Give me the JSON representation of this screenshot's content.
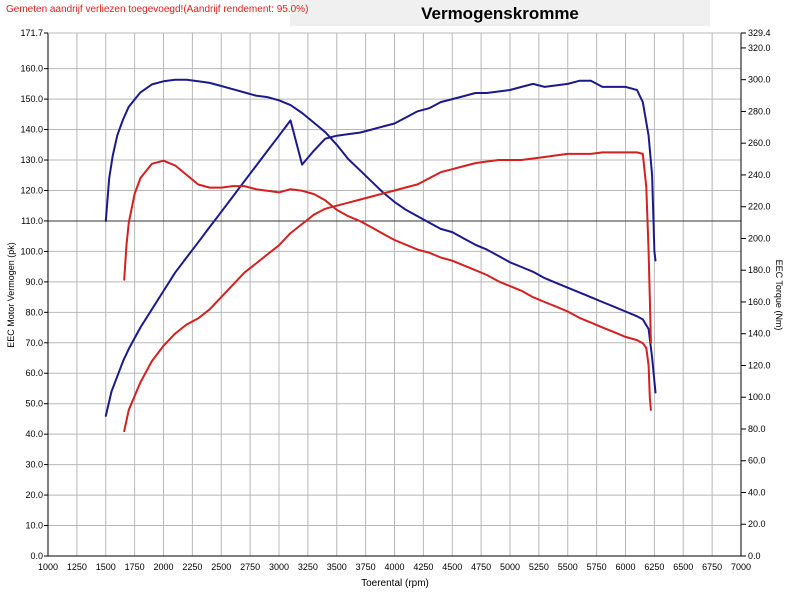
{
  "header": {
    "warning": "Gemeten aandrijf verliezen toegevoegd!(Aandrijf rendement: 95.0%)",
    "title": "Vermogenskromme"
  },
  "chart_data": {
    "type": "line",
    "title": "Vermogenskromme",
    "xlabel": "Toerental (rpm)",
    "ylabel_left": "EEC Motor Vermogen (pk)",
    "ylabel_right": "EEC Torque (Nm)",
    "xlim": [
      1000,
      7000
    ],
    "ylim_left": [
      0,
      171.7
    ],
    "ylim_right": [
      0,
      329.4
    ],
    "x_ticks": [
      "1000",
      "1250",
      "1500",
      "1750",
      "2000",
      "2250",
      "2500",
      "2750",
      "3000",
      "3250",
      "3500",
      "3750",
      "4000",
      "4250",
      "4500",
      "4750",
      "5000",
      "5250",
      "5500",
      "5750",
      "6000",
      "6250",
      "6500",
      "6750",
      "7000"
    ],
    "y_left_ticks": [
      {
        "v": 0,
        "label": "0.0"
      },
      {
        "v": 10,
        "label": "10.0"
      },
      {
        "v": 20,
        "label": "20.0"
      },
      {
        "v": 30,
        "label": "30.0"
      },
      {
        "v": 40,
        "label": "40.0"
      },
      {
        "v": 50,
        "label": "50.0"
      },
      {
        "v": 60,
        "label": "60.0"
      },
      {
        "v": 70,
        "label": "70.0"
      },
      {
        "v": 80,
        "label": "80.0"
      },
      {
        "v": 90,
        "label": "90.0"
      },
      {
        "v": 100,
        "label": "100.0"
      },
      {
        "v": 110,
        "label": "110.0"
      },
      {
        "v": 120,
        "label": "120.0"
      },
      {
        "v": 130,
        "label": "130.0"
      },
      {
        "v": 140,
        "label": "140.0"
      },
      {
        "v": 150,
        "label": "150.0"
      },
      {
        "v": 160,
        "label": "160.0"
      },
      {
        "v": 171.7,
        "label": "171.7"
      }
    ],
    "y_right_ticks": [
      {
        "v": 0,
        "label": "0.0"
      },
      {
        "v": 20,
        "label": "20.0"
      },
      {
        "v": 40,
        "label": "40.0"
      },
      {
        "v": 60,
        "label": "60.0"
      },
      {
        "v": 80,
        "label": "80.0"
      },
      {
        "v": 100,
        "label": "100.0"
      },
      {
        "v": 120,
        "label": "120.0"
      },
      {
        "v": 140,
        "label": "140.0"
      },
      {
        "v": 160,
        "label": "160.0"
      },
      {
        "v": 180,
        "label": "180.0"
      },
      {
        "v": 200,
        "label": "200.0"
      },
      {
        "v": 220,
        "label": "220.0"
      },
      {
        "v": 240,
        "label": "240.0"
      },
      {
        "v": 260,
        "label": "260.0"
      },
      {
        "v": 280,
        "label": "280.0"
      },
      {
        "v": 300,
        "label": "300.0"
      },
      {
        "v": 320,
        "label": "320.0"
      },
      {
        "v": 329.4,
        "label": "329.4"
      }
    ],
    "grid": true,
    "highlight_y_left": 110,
    "colors": {
      "blue": "#1a1a8c",
      "red": "#d42020",
      "grid": "#b8b8b8",
      "highlight": "#333333"
    },
    "series": [
      {
        "color": "blue",
        "axis": "left",
        "x": [
          1500,
          1550,
          1600,
          1650,
          1700,
          1800,
          1900,
          2000,
          2100,
          2200,
          2300,
          2400,
          2500,
          2600,
          2700,
          2800,
          2900,
          3000,
          3100,
          3200,
          3300,
          3400,
          3500,
          3600,
          3700,
          3800,
          3900,
          4000,
          4100,
          4200,
          4300,
          4400,
          4500,
          4600,
          4700,
          4800,
          4900,
          5000,
          5100,
          5200,
          5300,
          5400,
          5500,
          5600,
          5700,
          5800,
          5900,
          6000,
          6100,
          6150,
          6200,
          6230,
          6250,
          6260
        ],
        "y": [
          46,
          54,
          59,
          64,
          68,
          75,
          81,
          87,
          93,
          98,
          103,
          108,
          113,
          118,
          123,
          128,
          133,
          138,
          143,
          128.5,
          133,
          137,
          138,
          138.5,
          139,
          140,
          141,
          142,
          144,
          146,
          147,
          149,
          150,
          151,
          152,
          152,
          152.5,
          153,
          154,
          155,
          154,
          154.5,
          155,
          156,
          156,
          154,
          154,
          154,
          153,
          149,
          138,
          125,
          100,
          97
        ]
      },
      {
        "color": "blue",
        "axis": "right",
        "x": [
          1500,
          1530,
          1560,
          1600,
          1650,
          1700,
          1800,
          1900,
          2000,
          2100,
          2200,
          2300,
          2400,
          2500,
          2600,
          2700,
          2800,
          2900,
          3000,
          3100,
          3200,
          3300,
          3400,
          3500,
          3600,
          3700,
          3800,
          3900,
          4000,
          4100,
          4200,
          4300,
          4400,
          4500,
          4600,
          4700,
          4800,
          4900,
          5000,
          5100,
          5200,
          5300,
          5400,
          5500,
          5600,
          5700,
          5800,
          5900,
          6000,
          6100,
          6150,
          6200,
          6230,
          6250,
          6260
        ],
        "y": [
          211,
          238,
          252,
          265,
          275,
          283,
          292,
          297,
          299,
          300,
          300,
          299,
          298,
          296,
          294,
          292,
          290,
          289,
          287,
          284,
          279,
          273,
          267,
          259,
          250,
          243,
          236,
          229,
          223,
          218,
          214,
          210,
          206,
          204,
          200,
          196,
          193,
          189,
          185,
          182,
          179,
          175,
          172,
          169,
          166,
          163,
          160,
          157,
          154,
          151,
          149,
          143,
          125,
          110,
          103
        ]
      },
      {
        "color": "red",
        "axis": "left",
        "x": [
          1660,
          1700,
          1800,
          1900,
          2000,
          2100,
          2200,
          2300,
          2400,
          2500,
          2600,
          2700,
          2800,
          2900,
          3000,
          3100,
          3200,
          3300,
          3400,
          3500,
          3600,
          3700,
          3800,
          3900,
          4000,
          4100,
          4200,
          4300,
          4400,
          4500,
          4600,
          4700,
          4800,
          4900,
          5000,
          5100,
          5200,
          5300,
          5400,
          5500,
          5600,
          5700,
          5800,
          5900,
          6000,
          6100,
          6150,
          6180,
          6200,
          6210,
          6220
        ],
        "y": [
          41,
          48,
          57,
          64,
          69,
          73,
          76,
          78,
          81,
          85,
          89,
          93,
          96,
          99,
          102,
          106,
          109,
          112,
          114,
          115,
          116,
          117,
          118,
          119,
          120,
          121,
          122,
          124,
          126,
          127,
          128,
          129,
          129.5,
          130,
          130,
          130,
          130.5,
          131,
          131.5,
          132,
          132,
          132,
          132.5,
          132.5,
          132.5,
          132.5,
          132,
          121,
          100,
          85,
          70
        ]
      },
      {
        "color": "red",
        "axis": "right",
        "x": [
          1660,
          1680,
          1700,
          1750,
          1800,
          1900,
          2000,
          2100,
          2200,
          2300,
          2400,
          2500,
          2600,
          2700,
          2800,
          2900,
          3000,
          3100,
          3200,
          3300,
          3400,
          3500,
          3600,
          3700,
          3800,
          3900,
          4000,
          4100,
          4200,
          4300,
          4400,
          4500,
          4600,
          4700,
          4800,
          4900,
          5000,
          5100,
          5200,
          5300,
          5400,
          5500,
          5600,
          5700,
          5800,
          5900,
          6000,
          6100,
          6150,
          6180,
          6200,
          6210,
          6220
        ],
        "y": [
          174,
          196,
          210,
          228,
          238,
          247,
          249,
          246,
          240,
          234,
          232,
          232,
          233,
          233,
          231,
          230,
          229,
          231,
          230,
          228,
          224,
          218,
          214,
          211,
          207,
          203,
          199,
          196,
          193,
          191,
          188,
          186,
          183,
          180,
          177,
          173,
          170,
          167,
          163,
          160,
          157,
          154,
          150,
          147,
          144,
          141,
          138,
          136,
          134,
          131,
          120,
          100,
          92
        ]
      }
    ]
  }
}
